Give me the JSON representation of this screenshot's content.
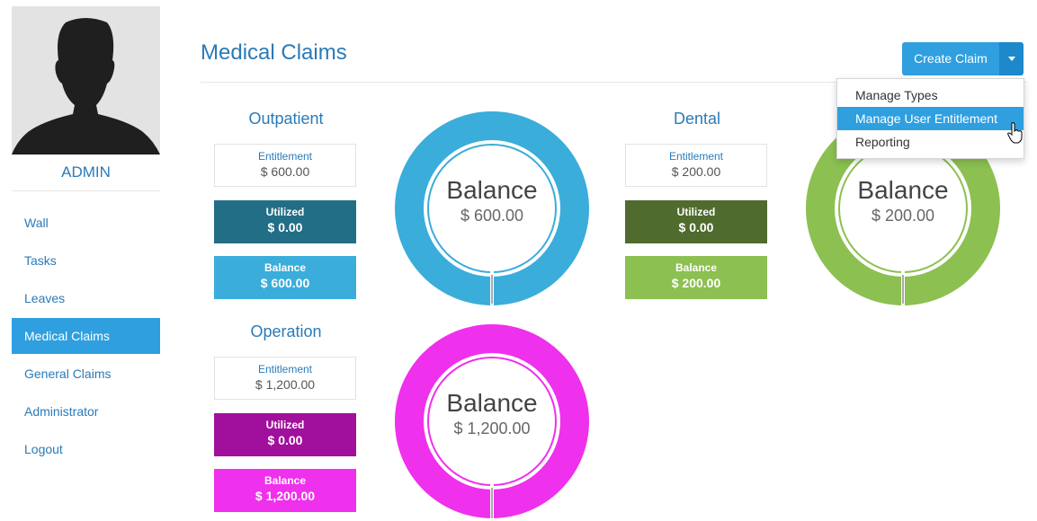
{
  "sidebar": {
    "username": "ADMIN",
    "items": [
      {
        "label": "Wall"
      },
      {
        "label": "Tasks"
      },
      {
        "label": "Leaves"
      },
      {
        "label": "Medical Claims",
        "active": true
      },
      {
        "label": "General Claims"
      },
      {
        "label": "Administrator"
      },
      {
        "label": "Logout"
      }
    ]
  },
  "header": {
    "title": "Medical Claims",
    "create_button": "Create Claim"
  },
  "dropdown": {
    "items": [
      {
        "label": "Manage Types"
      },
      {
        "label": "Manage User Entitlement",
        "active": true
      },
      {
        "label": "Reporting"
      }
    ]
  },
  "labels": {
    "entitlement": "Entitlement",
    "utilized": "Utilized",
    "balance": "Balance"
  },
  "claims": [
    {
      "name": "Outpatient",
      "entitlement": "$ 600.00",
      "utilized": "$ 0.00",
      "balance": "$ 600.00",
      "colors": {
        "utilized": "#236e87",
        "balance": "#3aaddb",
        "ring": "#3aaddb"
      }
    },
    {
      "name": "Dental",
      "entitlement": "$ 200.00",
      "utilized": "$ 0.00",
      "balance": "$ 200.00",
      "colors": {
        "utilized": "#4f6b2d",
        "balance": "#8cc051",
        "ring": "#8cc051"
      }
    },
    {
      "name": "Operation",
      "entitlement": "$ 1,200.00",
      "utilized": "$ 0.00",
      "balance": "$ 1,200.00",
      "colors": {
        "utilized": "#a1109c",
        "balance": "#ef30ec",
        "ring": "#ef30ec"
      }
    }
  ]
}
